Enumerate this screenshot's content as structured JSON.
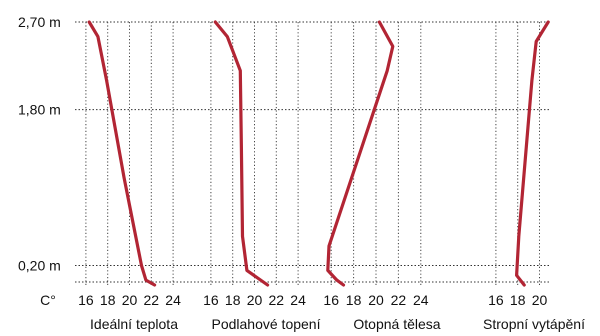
{
  "chart_data": {
    "type": "line",
    "y_unit_label": "C°",
    "height_labels": [
      {
        "label": "2,70 m",
        "value": 2.7
      },
      {
        "label": "1,80 m",
        "value": 1.8
      },
      {
        "label": "0,20 m",
        "value": 0.2
      }
    ],
    "ylim": [
      0,
      2.7
    ],
    "grid": true,
    "line_color": "#b22534",
    "panels": [
      {
        "name": "Ideální teplota",
        "ticks": [
          "16",
          "18",
          "20",
          "22",
          "24"
        ],
        "xlim": [
          15,
          25
        ],
        "points": [
          [
            16.3,
            2.7
          ],
          [
            17.1,
            2.55
          ],
          [
            17.9,
            2.1
          ],
          [
            19.5,
            1.1
          ],
          [
            21.1,
            0.2
          ],
          [
            21.5,
            0.05
          ],
          [
            22.3,
            0.0
          ]
        ]
      },
      {
        "name": "Podlahové topení",
        "ticks": [
          "16",
          "18",
          "20",
          "22",
          "24"
        ],
        "xlim": [
          15,
          25
        ],
        "points": [
          [
            16.4,
            2.7
          ],
          [
            17.5,
            2.55
          ],
          [
            18.7,
            2.2
          ],
          [
            18.8,
            1.4
          ],
          [
            18.9,
            0.5
          ],
          [
            19.3,
            0.15
          ],
          [
            21.2,
            0.0
          ]
        ]
      },
      {
        "name": "Otopná tělesa",
        "ticks": [
          "16",
          "18",
          "20",
          "22",
          "24"
        ],
        "xlim": [
          15,
          25
        ],
        "points": [
          [
            20.3,
            2.7
          ],
          [
            21.5,
            2.45
          ],
          [
            21.0,
            2.2
          ],
          [
            15.8,
            0.4
          ],
          [
            15.7,
            0.15
          ],
          [
            16.5,
            0.05
          ],
          [
            17.1,
            0.0
          ]
        ]
      },
      {
        "name": "Stropní vytápění",
        "ticks": [
          "16",
          "18",
          "20"
        ],
        "xlim": [
          15,
          21
        ],
        "points": [
          [
            20.8,
            2.7
          ],
          [
            19.7,
            2.5
          ],
          [
            19.3,
            2.1
          ],
          [
            18.1,
            0.5
          ],
          [
            17.9,
            0.1
          ],
          [
            18.6,
            0.0
          ]
        ]
      }
    ]
  }
}
